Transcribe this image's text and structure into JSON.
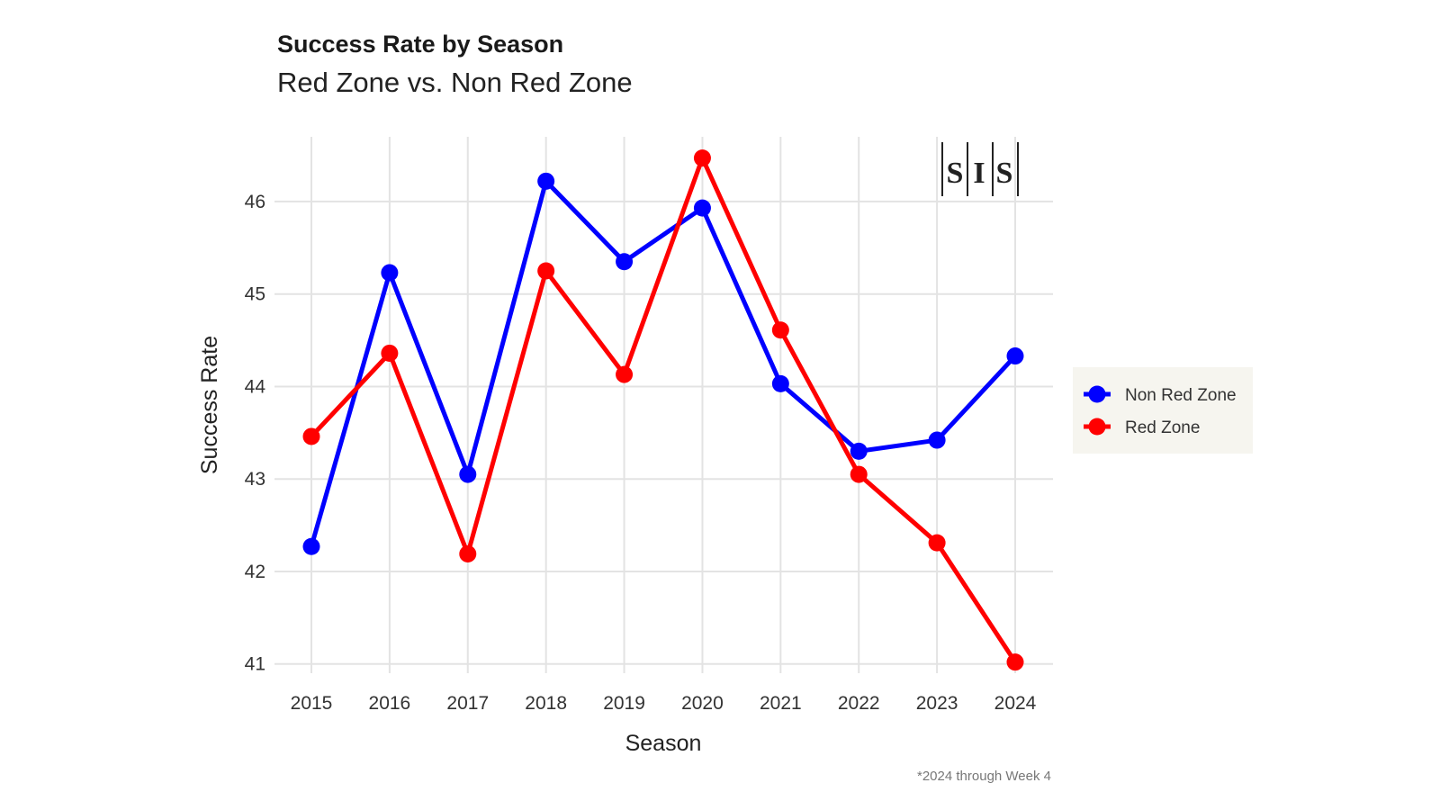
{
  "chart_data": {
    "type": "line",
    "title": "Success Rate by Season",
    "subtitle": "Red Zone vs. Non Red Zone",
    "xlabel": "Season",
    "ylabel": "Success Rate",
    "caption": "*2024 through Week 4",
    "logo_text": "S|I|S",
    "categories": [
      "2015",
      "2016",
      "2017",
      "2018",
      "2019",
      "2020",
      "2021",
      "2022",
      "2023",
      "2024"
    ],
    "x": [
      2015,
      2016,
      2017,
      2018,
      2019,
      2020,
      2021,
      2022,
      2023,
      2024
    ],
    "ylim": [
      40.9,
      46.7
    ],
    "yticks": [
      41,
      42,
      43,
      44,
      45,
      46
    ],
    "grid": true,
    "legend_position": "right",
    "series": [
      {
        "name": "Non Red Zone",
        "color": "#0000ff",
        "values": [
          42.27,
          45.23,
          43.05,
          46.22,
          45.35,
          45.93,
          44.03,
          43.3,
          43.42,
          44.33
        ]
      },
      {
        "name": "Red Zone",
        "color": "#ff0000",
        "values": [
          43.46,
          44.36,
          42.19,
          45.25,
          44.13,
          46.47,
          44.61,
          43.05,
          42.31,
          41.02
        ]
      }
    ]
  }
}
